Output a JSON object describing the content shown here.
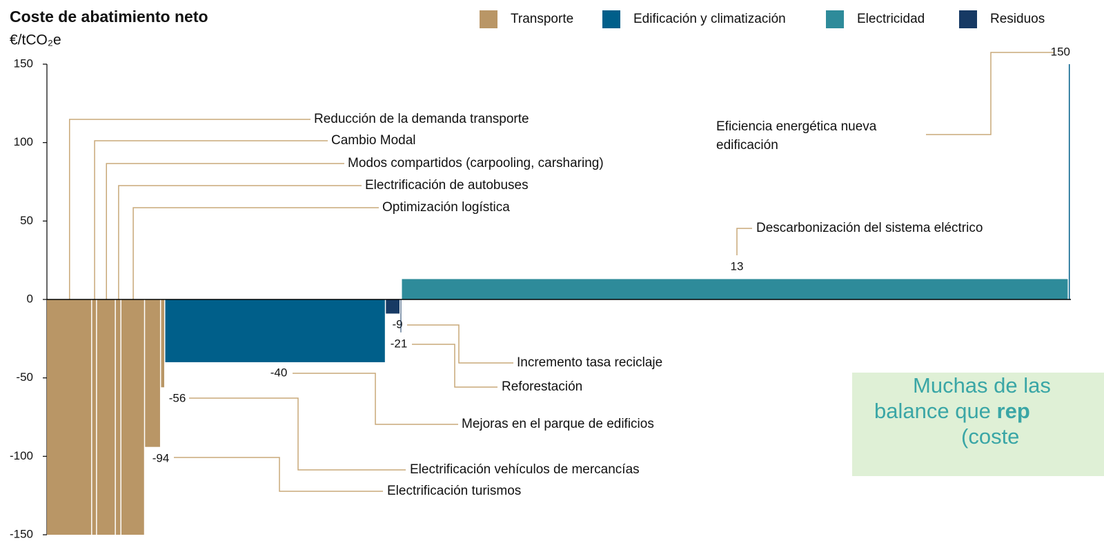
{
  "chart_data": {
    "type": "cost-curve",
    "title": "Coste de abatimiento neto",
    "y_label": "€/tCO₂e",
    "legend": [
      {
        "name": "Transporte",
        "color": "#b99666"
      },
      {
        "name": "Edificación y climatización",
        "color": "#005f8a"
      },
      {
        "name": "Electricidad",
        "color": "#2e8b9a"
      },
      {
        "name": "Residuos",
        "color": "#173a64"
      }
    ],
    "categories": [
      "Reducción de la demanda transporte",
      "Cambio Modal",
      "Modos compartidos (carpooling, carsharing)",
      "Electrificación de autobuses",
      "Optimización logística",
      "Electrificación turismos",
      "Electrificación vehículos de mercancías",
      "Mejoras en el parque de edificios",
      "Incremento tasa reciclaje",
      "Reforestación",
      "Descarbonización del sistema eléctrico",
      "Eficiencia energética nueva edificación"
    ],
    "values": [
      -150,
      -150,
      -150,
      -150,
      -150,
      -94,
      -56,
      -40,
      -9,
      -21,
      13,
      150
    ],
    "value_labels": [
      null,
      null,
      null,
      null,
      null,
      "-94",
      "-56",
      "-40",
      "-9",
      "-21",
      "13",
      "150"
    ],
    "widths": [
      65,
      7,
      27,
      8,
      34,
      23,
      6,
      317,
      21,
      2,
      958,
      3
    ],
    "colors": [
      "#b99666",
      "#b99666",
      "#b99666",
      "#b99666",
      "#b99666",
      "#b99666",
      "#b99666",
      "#005f8a",
      "#173a64",
      "#173a64",
      "#2e8b9a",
      "#005f8a"
    ],
    "ylim": [
      -150,
      150
    ],
    "yticks": [
      -150,
      -100,
      -50,
      0,
      50,
      100,
      150
    ],
    "callout": {
      "line1": "Muchas de las",
      "line2": "balance que ",
      "line2_bold": "rep",
      "line3": "(coste"
    }
  }
}
